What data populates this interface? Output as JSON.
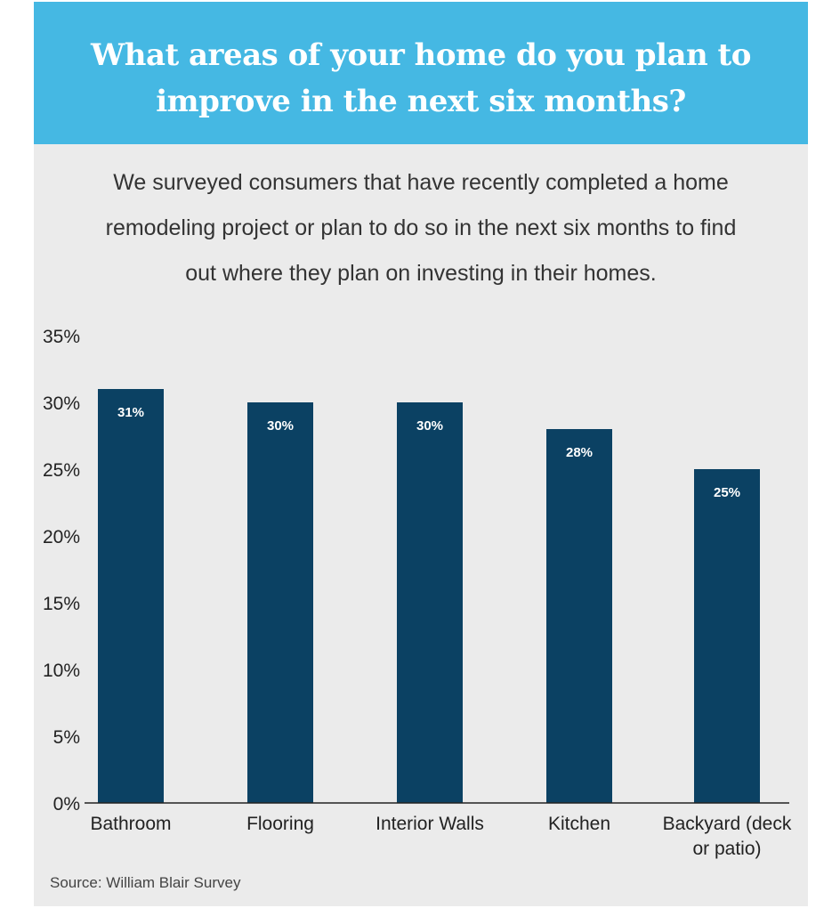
{
  "header": {
    "title_lines": [
      "What areas of your home do you plan to",
      "improve in the next six months?"
    ]
  },
  "subtitle_lines": [
    "We surveyed consumers that have recently completed a home",
    "remodeling project or plan to do so in the next six months to find",
    "out where they plan on investing in their homes."
  ],
  "source": "Source: William Blair Survey",
  "colors": {
    "header_bg": "#45b8e3",
    "card_bg": "#ebebeb",
    "bar": "#0b4163"
  },
  "chart_data": {
    "type": "bar",
    "title": "What areas of your home do you plan to improve in the next six months?",
    "categories": [
      [
        "Bathroom"
      ],
      [
        "Flooring"
      ],
      [
        "Interior Walls"
      ],
      [
        "Kitchen"
      ],
      [
        "Backyard (deck",
        "or patio)"
      ]
    ],
    "values": [
      31,
      30,
      30,
      28,
      25
    ],
    "data_labels": [
      "31%",
      "30%",
      "30%",
      "28%",
      "25%"
    ],
    "yticks": [
      0,
      5,
      10,
      15,
      20,
      25,
      30,
      35
    ],
    "ytick_labels": [
      "0%",
      "5%",
      "10%",
      "15%",
      "20%",
      "25%",
      "30%",
      "35%"
    ],
    "ylim": [
      0,
      35
    ],
    "xlabel": "",
    "ylabel": "",
    "grid": false,
    "legend": "none"
  }
}
